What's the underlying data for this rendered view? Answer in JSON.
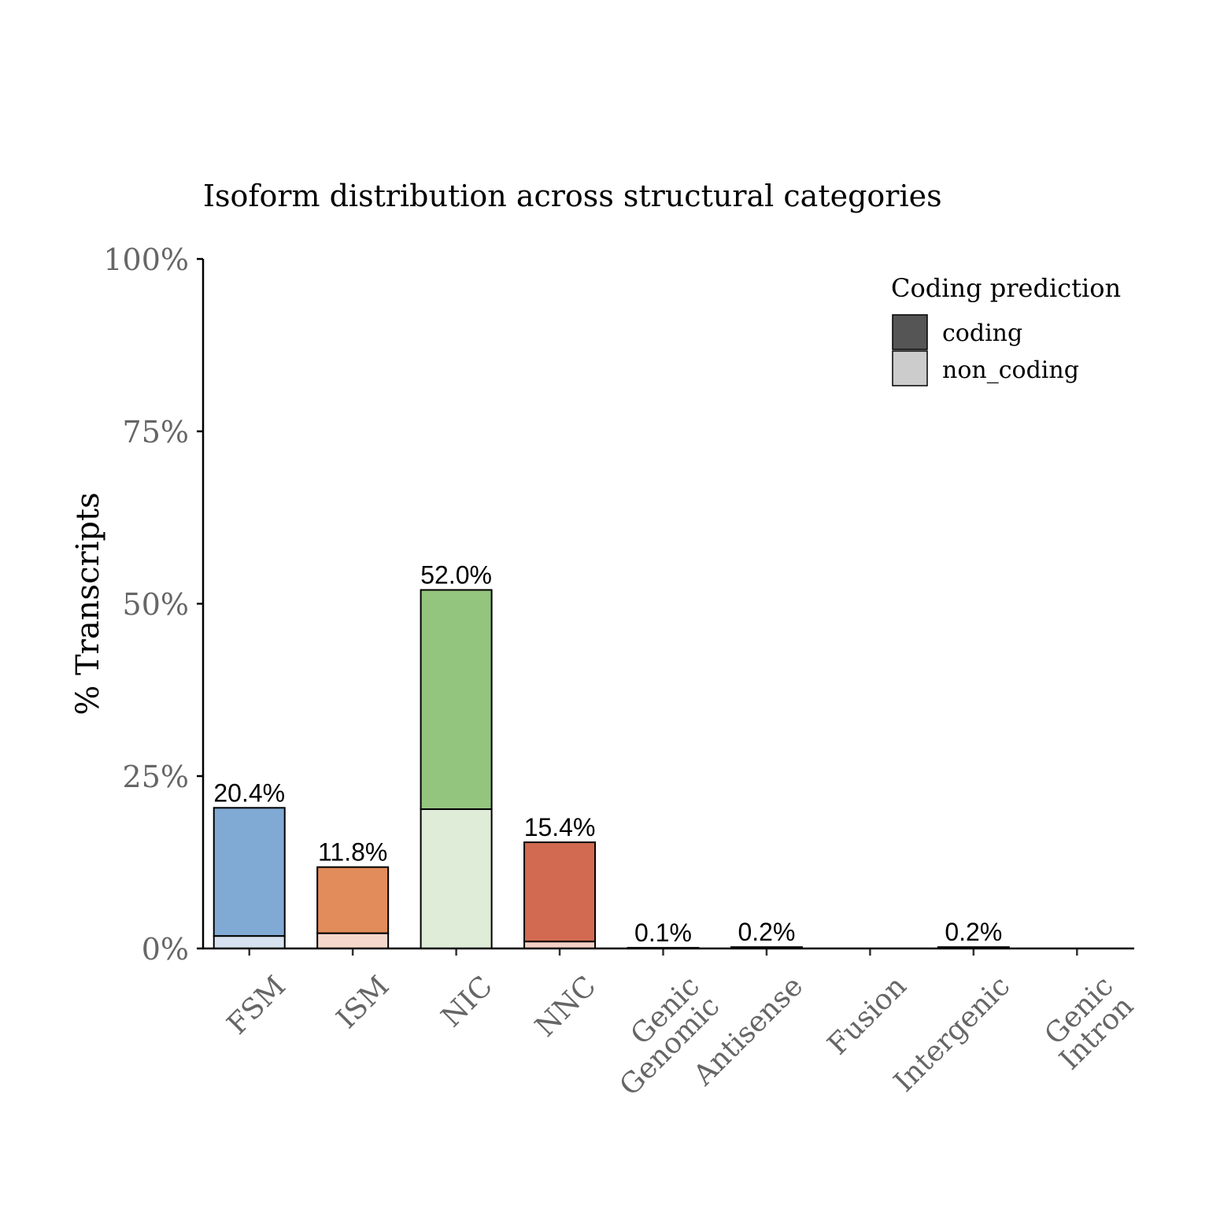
{
  "chart_data": {
    "type": "bar",
    "stacked": true,
    "title": "Isoform distribution across structural categories",
    "xlabel": "",
    "ylabel": "% Transcripts",
    "ylim": [
      0,
      100
    ],
    "yticks": [
      "0%",
      "25%",
      "50%",
      "75%",
      "100%"
    ],
    "ytick_values": [
      0,
      25,
      50,
      75,
      100
    ],
    "grid": false,
    "categories": [
      "FSM",
      "ISM",
      "NIC",
      "NNC",
      "Genic\nGenomic",
      "Antisense",
      "Fusion",
      "Intergenic",
      "Genic\nIntron"
    ],
    "totals": [
      20.4,
      11.8,
      52.0,
      15.4,
      0.1,
      0.2,
      0,
      0.2,
      0
    ],
    "total_labels": [
      "20.4%",
      "11.8%",
      "52.0%",
      "15.4%",
      "0.1%",
      "0.2%",
      "",
      "0.2%",
      ""
    ],
    "non_coding": [
      1.8,
      2.2,
      20.2,
      1.0,
      0,
      0,
      0,
      0,
      0
    ],
    "colors": [
      "#80a9d3",
      "#e28c5b",
      "#94c57e",
      "#d26a51",
      "#e9b84c",
      "#7f6bb0",
      "#d77fa9",
      "#5c9c8a",
      "#a8a8a8"
    ],
    "light_colors": [
      "#d6e2ef",
      "#f5d8cb",
      "#dfedd8",
      "#f2cfc6",
      "#f7ead0",
      "#ddd7eb",
      "#f4d9e5",
      "#d3e6e0",
      "#e5e5e5"
    ],
    "legend": {
      "title": "Coding prediction",
      "position": "top-right",
      "entries": [
        {
          "label": "coding",
          "color": "#555555"
        },
        {
          "label": "non_coding",
          "color": "#cccccc"
        }
      ]
    }
  }
}
